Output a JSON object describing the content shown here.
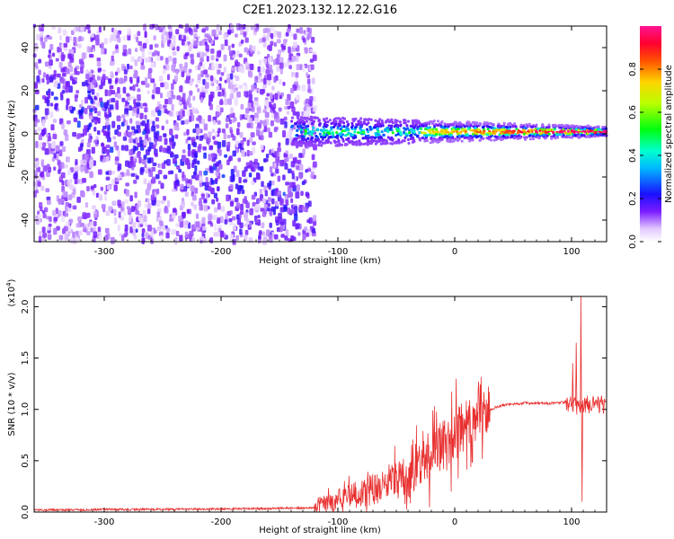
{
  "figure_title": "C2E1.2023.132.12.22.G16",
  "chart_data": [
    {
      "type": "heatmap",
      "xlabel": "Height of straight line (km)",
      "ylabel": "Frequency (Hz)",
      "xlim": [
        -360,
        130
      ],
      "ylim": [
        -50,
        50
      ],
      "x_ticks": [
        -300,
        -200,
        -100,
        0,
        100
      ],
      "y_ticks": [
        -40,
        -20,
        0,
        20,
        40
      ],
      "colorbar": {
        "label": "Normalized spectral amplitude",
        "range": [
          0.0,
          1.0
        ],
        "ticks": [
          0.0,
          0.2,
          0.4,
          0.6,
          0.8
        ],
        "colormap": "rainbow (white-violet-blue-cyan-green-yellow-red-magenta)"
      },
      "features": {
        "diffuse_noise_region_x": [
          -360,
          -120
        ],
        "echo_band_x": [
          -140,
          130
        ],
        "echo_band_center_hz": 1,
        "echo_band_halfwidth_hz_at_start": 6,
        "echo_band_halfwidth_hz_at_end": 2,
        "echo_band_peak_amplitude": 0.95
      }
    },
    {
      "type": "line",
      "xlabel": "Height of straight line (km)",
      "ylabel": "SNR (10 * v/v)",
      "y_scale_label": "(x10",
      "y_scale_exp": "4",
      "y_scale_close": ")",
      "xlim": [
        -360,
        130
      ],
      "ylim": [
        0,
        2.1
      ],
      "x_ticks": [
        -300,
        -200,
        -100,
        0,
        100
      ],
      "y_ticks": [
        0.0,
        0.5,
        1.0,
        1.5,
        2.0
      ],
      "series_color": "#e83030",
      "profile_knots": {
        "x": [
          -360,
          -200,
          -120,
          -100,
          -70,
          -40,
          -20,
          0,
          20,
          40,
          60,
          80,
          95,
          102,
          108,
          112,
          130
        ],
        "y": [
          0.02,
          0.03,
          0.04,
          0.12,
          0.22,
          0.35,
          0.55,
          0.75,
          0.95,
          1.04,
          1.06,
          1.06,
          1.07,
          1.05,
          1.0,
          1.05,
          1.04
        ]
      },
      "spikes": [
        {
          "x": 101,
          "y": 1.45
        },
        {
          "x": 104,
          "y": 1.65
        },
        {
          "x": 108,
          "y": 2.1
        },
        {
          "x": 109,
          "y": 0.1
        }
      ]
    }
  ]
}
